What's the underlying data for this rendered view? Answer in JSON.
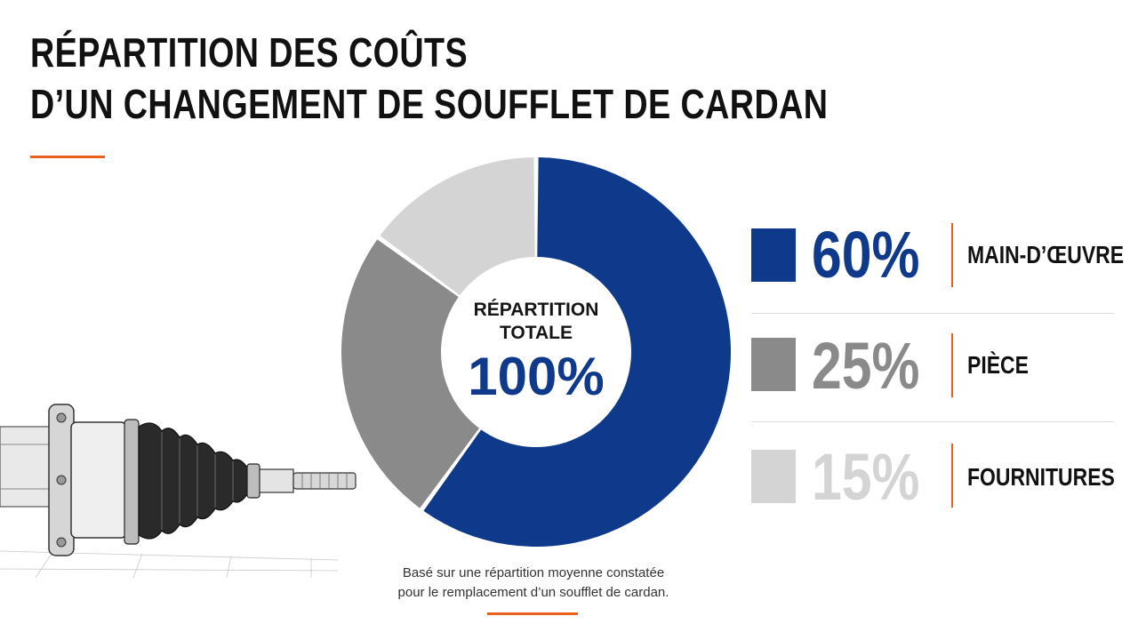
{
  "title": {
    "line1": "RÉPARTITION DES COÛTS",
    "line2": "D’UN CHANGEMENT DE SOUFFLET DE CARDAN"
  },
  "center": {
    "label_line1": "RÉPARTITION",
    "label_line2": "TOTALE",
    "value": "100%"
  },
  "legend": [
    {
      "pct": "60%",
      "name": "MAIN-D’ŒUVRE",
      "color": "#0f3a8c"
    },
    {
      "pct": "25%",
      "name": "PIÈCE",
      "color": "#8a8a8a"
    },
    {
      "pct": "15%",
      "name": "FOURNITURES",
      "color": "#d4d4d4"
    }
  ],
  "footnote": {
    "line1": "Basé sur une répartition moyenne constatée",
    "line2": "pour le remplacement d’un soufflet de cardan."
  },
  "illustration": {
    "icon": "cv-joint-boot-drawing"
  },
  "colors": {
    "accent": "#e8621d",
    "primary": "#0f3a8c"
  },
  "chart_data": {
    "type": "pie",
    "donut": true,
    "categories": [
      "MAIN-D’ŒUVRE",
      "PIÈCE",
      "FOURNITURES"
    ],
    "values": [
      60,
      25,
      15
    ],
    "colors": [
      "#0f3a8c",
      "#8a8a8a",
      "#d4d4d4"
    ],
    "center_label": "RÉPARTITION TOTALE",
    "center_value": "100%",
    "title": "RÉPARTITION DES COÛTS D’UN CHANGEMENT DE SOUFFLET DE CARDAN",
    "legend_position": "right"
  }
}
